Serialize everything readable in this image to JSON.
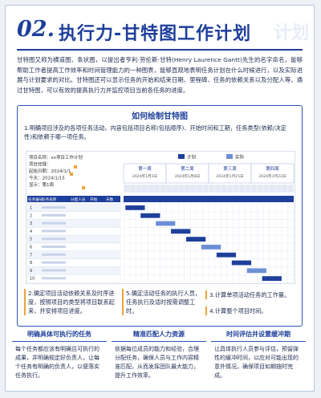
{
  "header": {
    "number": "02.",
    "title": "执行力-甘特图工作计划",
    "watermark": "计划"
  },
  "intro": "甘特图又称为横道图、条状图，以提出者亨利·劳伦斯·甘特(Henry Laurence Gantt)先生的名字命名，能够帮助工作者提高工作效率和时间管理能力的一种图表，能够直观地表明任务计划在什么时候进行，以及实际进展与计划要求的对比。甘特图还可以显示任务的开始和结束日期、里程碑、任务的依赖关系以及分配人等，通过甘特图，可以有效的提高执行力并监控项目当前各任务的进度。",
  "section": {
    "title": "如何绘制甘特图",
    "steps": [
      "1.明确项目涉及的各项任务活动，内容包括项目名称(包括顺序)、开始时间和工期，任务类型(依赖/决定性)和依赖于哪一项任务。",
      "2.确定项目活动依赖关系及时序进度，按照项目的类型将项目联系起来，并安排项目进度。",
      "3.计算单项活动任务的工作量。",
      "4.计算整个项目时间。",
      "5.确定活动任务的执行人员，任务执行及适时按需调整工时。"
    ]
  },
  "gantt": {
    "info": [
      "项目名称：xx项目工作计划",
      "项目经理：",
      "起始日期：2024/1/1",
      "今天：2024/1/15",
      "显示：第1周"
    ],
    "columns": [
      "任务编号",
      "任务名称",
      "分配人员",
      "开始",
      "天数"
    ],
    "rows": [
      "1",
      "2",
      "3",
      "4",
      "5",
      "6",
      "7",
      "8",
      "9",
      "10"
    ],
    "legend": [
      "计划",
      "实际"
    ],
    "weeks": [
      {
        "name": "第一周",
        "date": "2024年1月1日"
      },
      {
        "name": "第二周",
        "date": "2024年1月8日"
      },
      {
        "name": "第三周",
        "date": "2024年1月15日"
      },
      {
        "name": "第四周",
        "date": "2024年1月22日"
      }
    ]
  },
  "tips": [
    {
      "title": "明确具体可执行的任务",
      "text": "每个任务都应该有明确且可执行的成果，并明确规定好负责人，让每个任务有明确的负责人，以便落实任务执行。"
    },
    {
      "title": "精准匹配人力资源",
      "text": "依据每位成员的能力和经验，合理分配任务，确保人员与工作内容精准匹配，从而发挥团队最大能力，提升工作效率。"
    },
    {
      "title": "时间评估并设置缓冲期",
      "text": "让具体执行人员参与评估，预留弹性的缓冲时间，以应对可能出现的意外情况，确保项目如期按时完成。"
    }
  ]
}
